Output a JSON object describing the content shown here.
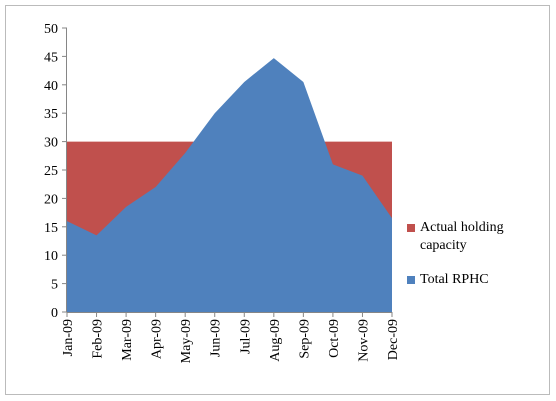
{
  "chart_data": {
    "type": "area",
    "categories": [
      "Jan-09",
      "Feb-09",
      "Mar-09",
      "Apr-09",
      "May-09",
      "Jun-09",
      "Jul-09",
      "Aug-09",
      "Sep-09",
      "Oct-09",
      "Nov-09",
      "Dec-09"
    ],
    "series": [
      {
        "name": "Actual holding capacity",
        "color": "#c0504d",
        "values": [
          30,
          30,
          30,
          30,
          30,
          30,
          30,
          30,
          30,
          30,
          30,
          30
        ]
      },
      {
        "name": "Total RPHC",
        "color": "#4f81bd",
        "values": [
          16,
          13.5,
          18.5,
          22,
          28,
          35,
          40.5,
          44.7,
          40.5,
          26,
          24,
          16.5
        ]
      }
    ],
    "ylim": [
      0,
      50
    ],
    "yticks": [
      0,
      5,
      10,
      15,
      20,
      25,
      30,
      35,
      40,
      45,
      50
    ],
    "grid": false,
    "legend": "right"
  }
}
